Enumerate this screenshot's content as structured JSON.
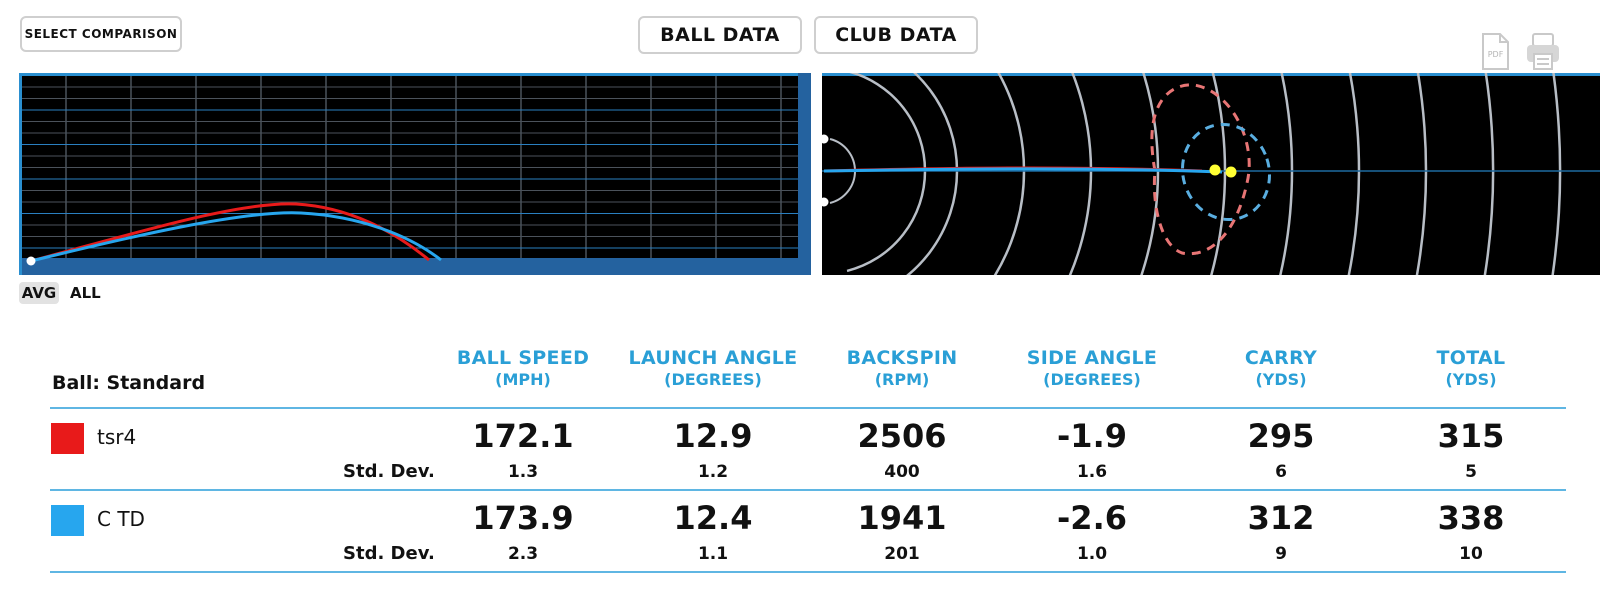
{
  "toolbar": {
    "select_comparison": "SELECT COMPARISON",
    "tab_ball_data": "BALL DATA",
    "tab_club_data": "CLUB DATA",
    "pdf_label": "PDF",
    "pdf_icon": "pdf-icon",
    "print_icon": "printer-icon"
  },
  "view_toggle": {
    "avg": "AVG",
    "all": "ALL",
    "selected": "AVG"
  },
  "ball_label": "Ball: Standard",
  "colors": {
    "accent": "#2a9fd6",
    "series_tsr4": "#e81a1a",
    "series_ctd": "#27a6ee",
    "landing_marker": "#ffff33"
  },
  "table": {
    "columns": [
      {
        "name": "BALL SPEED",
        "unit": "(MPH)"
      },
      {
        "name": "LAUNCH ANGLE",
        "unit": "(DEGREES)"
      },
      {
        "name": "BACKSPIN",
        "unit": "(RPM)"
      },
      {
        "name": "SIDE ANGLE",
        "unit": "(DEGREES)"
      },
      {
        "name": "CARRY",
        "unit": "(YDS)"
      },
      {
        "name": "TOTAL",
        "unit": "(YDS)"
      }
    ],
    "std_dev_label": "Std. Dev.",
    "rows": [
      {
        "name": "tsr4",
        "color": "#e81a1a",
        "values": [
          "172.1",
          "12.9",
          "2506",
          "-1.9",
          "295",
          "315"
        ],
        "std": [
          "1.3",
          "1.2",
          "400",
          "1.6",
          "6",
          "5"
        ]
      },
      {
        "name": "C TD",
        "color": "#27a6ee",
        "values": [
          "173.9",
          "12.4",
          "1941",
          "-2.6",
          "312",
          "338"
        ],
        "std": [
          "2.3",
          "1.1",
          "201",
          "1.0",
          "9",
          "10"
        ]
      }
    ]
  }
}
